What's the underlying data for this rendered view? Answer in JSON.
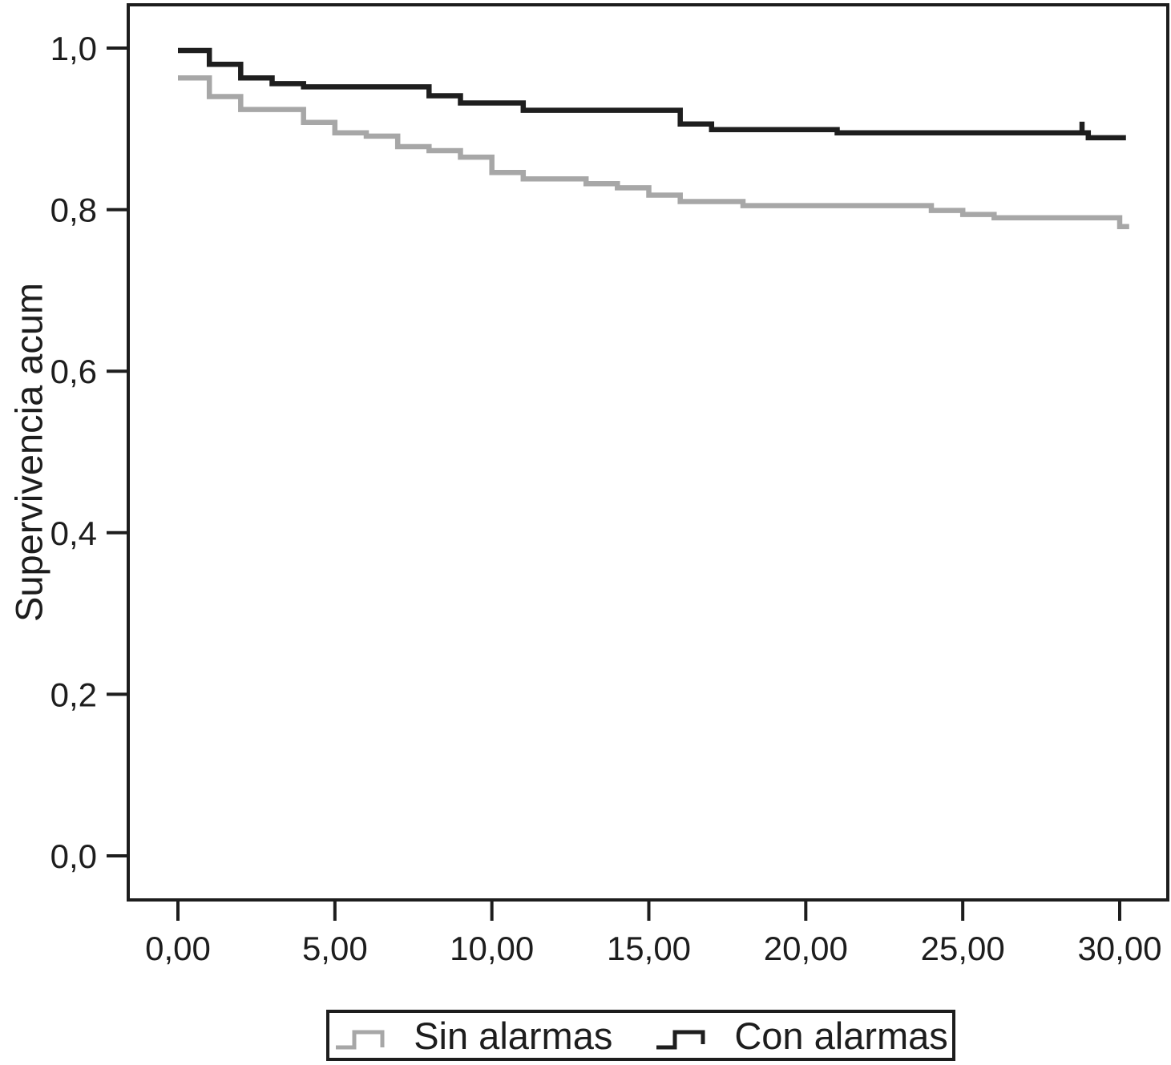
{
  "chart_data": {
    "type": "line",
    "subtype": "kaplan-meier-step-survival",
    "title": "",
    "xlabel": "",
    "ylabel": "Supervivencia acum",
    "xlim": [
      -1.6,
      31.6
    ],
    "ylim": [
      -0.055,
      1.054
    ],
    "grid": false,
    "legend_position": "bottom-boxed",
    "axis_color": "#1d1d1d",
    "text_color": "#1d1d1d",
    "background_color": "#ffffff",
    "xticks": {
      "values": [
        0,
        5,
        10,
        15,
        20,
        25,
        30
      ],
      "labels": [
        "0,00",
        "5,00",
        "10,00",
        "15,00",
        "20,00",
        "25,00",
        "30,00"
      ]
    },
    "yticks": {
      "values": [
        0.0,
        0.2,
        0.4,
        0.6,
        0.8,
        1.0
      ],
      "labels": [
        "0,0",
        "0,2",
        "0,4",
        "0,6",
        "0,8",
        "1,0"
      ]
    },
    "series": [
      {
        "name": "Sin alarmas",
        "color": "#a7a7a7",
        "x_end": 30.3,
        "censor_x": [],
        "steps": [
          [
            0,
            0.963
          ],
          [
            1,
            0.94
          ],
          [
            2,
            0.924
          ],
          [
            4,
            0.908
          ],
          [
            5,
            0.895
          ],
          [
            6,
            0.891
          ],
          [
            7,
            0.878
          ],
          [
            8,
            0.873
          ],
          [
            9,
            0.865
          ],
          [
            10,
            0.846
          ],
          [
            11,
            0.838
          ],
          [
            13,
            0.832
          ],
          [
            14,
            0.827
          ],
          [
            15,
            0.818
          ],
          [
            16,
            0.81
          ],
          [
            18,
            0.805
          ],
          [
            24,
            0.799
          ],
          [
            25,
            0.794
          ],
          [
            26,
            0.79
          ],
          [
            30,
            0.779
          ]
        ]
      },
      {
        "name": "Con alarmas",
        "color": "#1e1e1e",
        "x_end": 30.2,
        "censor_x": [
          28.8
        ],
        "steps": [
          [
            0,
            0.997
          ],
          [
            1,
            0.98
          ],
          [
            2,
            0.963
          ],
          [
            3,
            0.956
          ],
          [
            4,
            0.952
          ],
          [
            8,
            0.941
          ],
          [
            9,
            0.932
          ],
          [
            11,
            0.923
          ],
          [
            16,
            0.906
          ],
          [
            17,
            0.899
          ],
          [
            21,
            0.895
          ],
          [
            29,
            0.889
          ]
        ]
      }
    ]
  }
}
